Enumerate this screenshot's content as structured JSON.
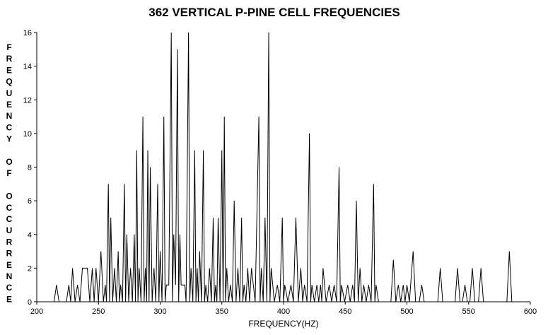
{
  "chart_data": {
    "type": "line",
    "title": "362 VERTICAL P-PINE CELL FREQUENCIES",
    "x_label": "FREQUENCY(HZ)",
    "y_label": "FREQUENCY OF OCCURRENCE",
    "color": "#000000",
    "x": [
      200,
      214,
      216,
      218,
      224,
      226,
      227.5,
      229,
      231,
      233,
      235,
      237,
      241,
      243,
      245,
      246.5,
      248,
      250,
      252,
      254,
      255.5,
      256.5,
      258,
      259,
      260,
      261.5,
      263,
      264.5,
      266,
      267,
      268,
      269.5,
      271,
      272,
      273,
      274.5,
      276,
      277.5,
      279,
      280,
      281,
      282,
      283,
      284.5,
      286,
      287,
      288,
      289,
      290,
      291,
      292,
      293.5,
      295,
      296.5,
      298,
      299,
      300,
      301.5,
      303,
      304,
      305,
      307,
      309,
      310,
      311,
      312.5,
      314,
      315,
      316,
      317,
      320,
      321,
      323,
      324,
      325,
      326.5,
      328,
      329,
      330,
      331,
      332,
      333.5,
      335,
      336,
      337,
      338.5,
      340,
      341.5,
      343,
      344,
      345,
      346,
      347,
      348.5,
      350,
      351,
      352,
      353,
      354,
      355.5,
      357,
      358.5,
      360,
      361.5,
      363,
      364.5,
      366,
      367,
      368,
      369.5,
      371,
      372.5,
      374,
      377,
      380,
      381,
      382,
      383.5,
      385,
      386.5,
      388,
      389,
      390,
      392.5,
      395,
      397,
      399,
      400,
      401,
      403.5,
      406,
      408,
      410,
      412,
      414,
      415.5,
      417,
      419,
      421,
      422,
      423,
      425,
      427,
      428.5,
      430,
      431,
      432,
      434.5,
      437,
      439,
      441,
      443,
      445,
      446,
      447,
      449.5,
      452,
      454,
      456,
      457.5,
      459,
      460.5,
      462,
      463.5,
      465,
      467,
      469,
      471,
      473,
      474,
      475,
      477,
      487,
      489,
      491,
      493,
      495,
      497,
      498.5,
      500,
      502,
      505,
      507,
      510,
      512,
      514,
      525,
      527,
      529,
      539,
      541,
      543,
      545,
      547,
      549,
      551,
      553,
      555,
      558,
      560,
      562,
      581,
      583,
      585,
      600
    ],
    "values": [
      0,
      0,
      1,
      0,
      0,
      1,
      0,
      2,
      0,
      1,
      0,
      2,
      2,
      0,
      2,
      0,
      2,
      0,
      3,
      0,
      1,
      0,
      7,
      0,
      5,
      0,
      2,
      0,
      3,
      0,
      1,
      0,
      7,
      0,
      4,
      0,
      2,
      0,
      4,
      0,
      9,
      0,
      2,
      0,
      11,
      0,
      2,
      0,
      9,
      0,
      8,
      0,
      2,
      0,
      7,
      0,
      3,
      0,
      11,
      0,
      1,
      1,
      16,
      0,
      4,
      1,
      15,
      0,
      4,
      1,
      1,
      0,
      16,
      0,
      2,
      0,
      9,
      0,
      2,
      0,
      3,
      0,
      9,
      0,
      1,
      0,
      2,
      0,
      5,
      0,
      1,
      0,
      5,
      0,
      9,
      0,
      11,
      0,
      2,
      0,
      1,
      0,
      6,
      0,
      2,
      0,
      5,
      0,
      1,
      0,
      2,
      0,
      2,
      0,
      11,
      0,
      2,
      0,
      5,
      0,
      16,
      0,
      2,
      0,
      1,
      0,
      5,
      0,
      1,
      0,
      1,
      0,
      5,
      0,
      2,
      0,
      1,
      0,
      10,
      0,
      1,
      0,
      1,
      0,
      1,
      0,
      2,
      0,
      1,
      0,
      1,
      0,
      8,
      0,
      1,
      0,
      1,
      0,
      1,
      0,
      6,
      0,
      2,
      0,
      1,
      0,
      1,
      0,
      7,
      0,
      1,
      0,
      0,
      2.5,
      0,
      1,
      0,
      1,
      0,
      1,
      0,
      3,
      0,
      0,
      1,
      0,
      0,
      2,
      0,
      0,
      2,
      0,
      0,
      1,
      0,
      0,
      2,
      0,
      0,
      2,
      0,
      0,
      3,
      0,
      0
    ],
    "xlim": [
      200,
      600
    ],
    "xticks": [
      200,
      250,
      300,
      350,
      400,
      450,
      500,
      550,
      600
    ],
    "ylim": [
      0,
      16
    ],
    "yticks": [
      0,
      2,
      4,
      6,
      8,
      10,
      12,
      14,
      16
    ]
  }
}
